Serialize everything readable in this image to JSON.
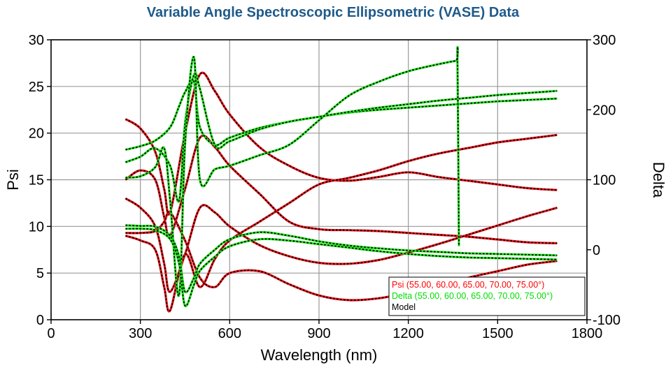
{
  "chart_data": {
    "type": "line",
    "title": "Variable Angle Spectroscopic Ellipsometric (VASE) Data",
    "xlabel": "Wavelength (nm)",
    "ylabel_left": "Psi",
    "ylabel_right": "Delta",
    "xlim": [
      0,
      1800
    ],
    "ylim_left": [
      0,
      30
    ],
    "ylim_right": [
      -100,
      300
    ],
    "xticks": [
      "0",
      "300",
      "600",
      "900",
      "1200",
      "1500",
      "1800"
    ],
    "yticks_left": [
      "0",
      "5",
      "10",
      "15",
      "20",
      "25",
      "30"
    ],
    "yticks_right": [
      "-100",
      "0",
      "100",
      "200",
      "300"
    ],
    "grid": true,
    "legend_position": "bottom-right",
    "legend": [
      {
        "label": "Psi (55.00, 60.00, 65.00, 70.00, 75.00°)",
        "color": "#ff0000"
      },
      {
        "label": "Delta (55.00, 60.00, 65.00, 70.00, 75.00°)",
        "color": "#00dd00"
      },
      {
        "label": "Model",
        "color": "#000000"
      }
    ],
    "colors": {
      "psi": "#e8141b",
      "delta": "#22e01e",
      "model": "#000000",
      "title": "#1f5a8a"
    },
    "series": [
      {
        "group": "Psi",
        "axis": "left",
        "x": [
          250,
          300,
          350,
          380,
          400,
          450,
          500,
          550,
          600,
          700,
          800,
          900,
          1000,
          1100,
          1200,
          1300,
          1400,
          1500,
          1600,
          1700
        ],
        "y": [
          21.5,
          20.5,
          18,
          14,
          11.5,
          20,
          26.3,
          24.5,
          22,
          18.5,
          16.5,
          15.2,
          14.9,
          15.3,
          15.8,
          15.3,
          14.9,
          14.5,
          14.1,
          13.9
        ]
      },
      {
        "group": "Psi",
        "axis": "left",
        "x": [
          250,
          300,
          350,
          380,
          400,
          450,
          500,
          550,
          600,
          700,
          800,
          900,
          1000,
          1100,
          1200,
          1300,
          1400,
          1500,
          1600,
          1700
        ],
        "y": [
          15,
          16,
          15,
          11,
          9,
          14,
          19.5,
          18.5,
          16.5,
          13.5,
          10.5,
          9.7,
          9.6,
          9.5,
          9.3,
          9.1,
          8.9,
          8.6,
          8.3,
          8.2
        ]
      },
      {
        "group": "Psi",
        "axis": "left",
        "x": [
          250,
          300,
          350,
          380,
          400,
          450,
          500,
          550,
          600,
          700,
          800,
          900,
          1000,
          1100,
          1200,
          1300,
          1400,
          1500,
          1600,
          1700
        ],
        "y": [
          13,
          12,
          10,
          6,
          3,
          7,
          12,
          11.5,
          10,
          8,
          6.8,
          6.1,
          6.0,
          6.4,
          7.2,
          8.1,
          9.1,
          10.1,
          11.1,
          12.0
        ]
      },
      {
        "group": "Psi",
        "axis": "left",
        "x": [
          250,
          300,
          350,
          380,
          400,
          450,
          500,
          550,
          600,
          700,
          800,
          900,
          1000,
          1100,
          1200,
          1300,
          1400,
          1500,
          1600,
          1700
        ],
        "y": [
          9.3,
          9.3,
          9.5,
          10.5,
          11.5,
          8.5,
          4.5,
          3.5,
          5,
          5.2,
          3.8,
          2.6,
          2.1,
          2.3,
          2.9,
          3.7,
          4.5,
          5.2,
          5.9,
          6.3
        ]
      },
      {
        "group": "Psi",
        "axis": "left",
        "x": [
          250,
          300,
          350,
          380,
          400,
          450,
          500,
          550,
          600,
          700,
          800,
          900,
          1000,
          1100,
          1200,
          1300,
          1400,
          1500,
          1600,
          1700
        ],
        "y": [
          9.0,
          8.5,
          7.5,
          3.5,
          1.0,
          7.0,
          3.5,
          6.5,
          8.5,
          10.5,
          12.5,
          14.5,
          15.2,
          16.0,
          17.0,
          17.8,
          18.4,
          19.0,
          19.4,
          19.8
        ]
      },
      {
        "group": "Delta",
        "axis": "right",
        "x": [
          250,
          300,
          350,
          400,
          430,
          450,
          480,
          500,
          550,
          600,
          700,
          800,
          900,
          1000,
          1100,
          1200,
          1300,
          1400,
          1500,
          1600,
          1700
        ],
        "y": [
          143,
          148,
          156,
          175,
          205,
          225,
          240,
          175,
          150,
          160,
          174,
          183,
          190,
          196,
          200,
          203,
          206,
          209,
          212,
          214,
          216
        ]
      },
      {
        "group": "Delta",
        "axis": "right",
        "x": [
          250,
          300,
          350,
          400,
          430,
          450,
          480,
          500,
          550,
          600,
          700,
          800,
          900,
          1000,
          1100,
          1200,
          1300,
          1400,
          1500,
          1600,
          1700
        ],
        "y": [
          125,
          133,
          145,
          120,
          70,
          180,
          250,
          230,
          150,
          155,
          172,
          183,
          190,
          197,
          203,
          208,
          213,
          217,
          221,
          224,
          227
        ]
      },
      {
        "group": "Delta",
        "axis": "right",
        "x": [
          250,
          300,
          350,
          380,
          400,
          430,
          450,
          480,
          500,
          550,
          600,
          700,
          800,
          900,
          1000,
          1100,
          1200,
          1300,
          1360,
          1365,
          1370
        ],
        "y": [
          103,
          105,
          118,
          145,
          70,
          -65,
          150,
          275,
          100,
          115,
          120,
          135,
          150,
          185,
          220,
          240,
          255,
          265,
          270,
          270,
          5
        ]
      },
      {
        "group": "Delta",
        "axis": "right",
        "x": [
          250,
          300,
          350,
          400,
          430,
          450,
          480,
          500,
          550,
          600,
          700,
          800,
          900,
          1000,
          1100,
          1200,
          1300,
          1400,
          1500,
          1600,
          1700
        ],
        "y": [
          35,
          34,
          33,
          20,
          -10,
          -60,
          -40,
          -20,
          0,
          15,
          25,
          20,
          12,
          6,
          2,
          -1,
          -3,
          -5,
          -6,
          -7,
          -8
        ]
      },
      {
        "group": "Delta",
        "axis": "right",
        "x": [
          250,
          300,
          350,
          400,
          430,
          450,
          480,
          500,
          550,
          600,
          700,
          800,
          900,
          1000,
          1100,
          1200,
          1300,
          1400,
          1500,
          1600,
          1700
        ],
        "y": [
          30,
          30,
          28,
          15,
          -20,
          -80,
          -50,
          -30,
          -10,
          5,
          15,
          13,
          8,
          3,
          -2,
          -6,
          -9,
          -11,
          -12,
          -13,
          -14
        ]
      }
    ]
  }
}
